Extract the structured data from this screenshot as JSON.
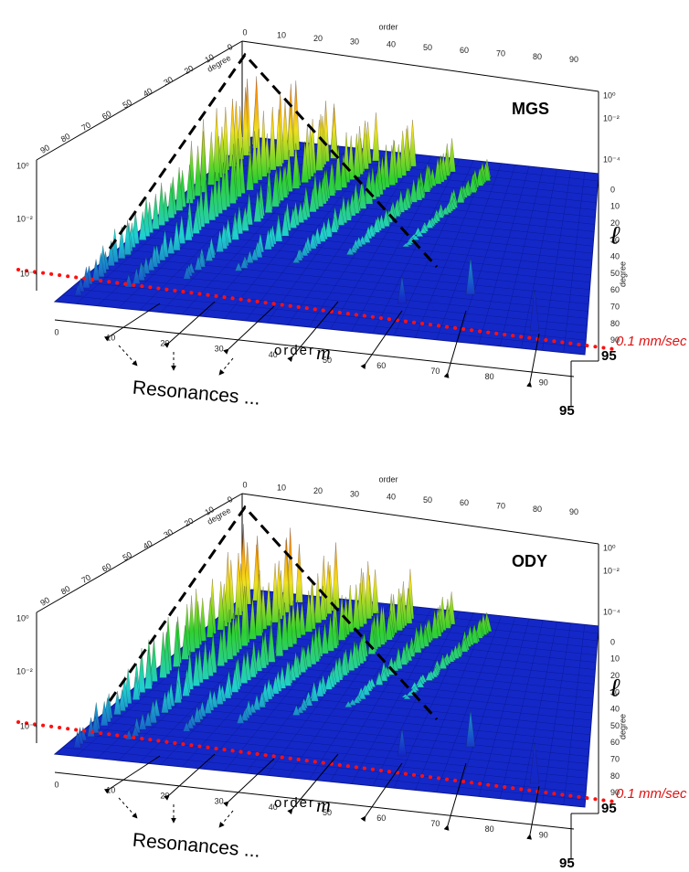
{
  "panels": [
    {
      "mission": "MGS",
      "top_axis_title": "order",
      "left_axis_title": "degree",
      "right_axis_title": "degree",
      "ell": "ℓ",
      "velocity_label": "0.1 mm/sec",
      "front_axis_title": "order",
      "front_axis_symbol": "m",
      "side_max": "95",
      "front_max": "95",
      "resonances": "Resonances ...",
      "top_order_ticks": [
        "0",
        "10",
        "20",
        "30",
        "40",
        "50",
        "60",
        "70",
        "80",
        "90"
      ],
      "front_order_ticks": [
        "0",
        "10",
        "20",
        "30",
        "40",
        "50",
        "60",
        "70",
        "80",
        "90"
      ],
      "left_degree_ticks": [
        "0",
        "10",
        "20",
        "30",
        "40",
        "50",
        "60",
        "70",
        "80",
        "90"
      ],
      "right_degree_ticks": [
        "0",
        "10",
        "20",
        "30",
        "40",
        "50",
        "60",
        "70",
        "80",
        "90"
      ],
      "left_amplitude_ticks": [
        "10⁰",
        "10⁻²",
        "10⁻⁴"
      ],
      "right_amplitude_ticks": [
        "10⁰",
        "10⁻²",
        "10⁻⁴"
      ]
    },
    {
      "mission": "ODY",
      "top_axis_title": "order",
      "left_axis_title": "degree",
      "right_axis_title": "degree",
      "ell": "ℓ",
      "velocity_label": "0.1 mm/sec",
      "front_axis_title": "order",
      "front_axis_symbol": "m",
      "side_max": "95",
      "front_max": "95",
      "resonances": "Resonances ...",
      "top_order_ticks": [
        "0",
        "10",
        "20",
        "30",
        "40",
        "50",
        "60",
        "70",
        "80",
        "90"
      ],
      "front_order_ticks": [
        "0",
        "10",
        "20",
        "30",
        "40",
        "50",
        "60",
        "70",
        "80",
        "90"
      ],
      "left_degree_ticks": [
        "0",
        "10",
        "20",
        "30",
        "40",
        "50",
        "60",
        "70",
        "80",
        "90"
      ],
      "right_degree_ticks": [
        "0",
        "10",
        "20",
        "30",
        "40",
        "50",
        "60",
        "70",
        "80",
        "90"
      ],
      "left_amplitude_ticks": [
        "10⁰",
        "10⁻²",
        "10⁻⁴"
      ],
      "right_amplitude_ticks": [
        "10⁰",
        "10⁻²",
        "10⁻⁴"
      ]
    }
  ]
}
